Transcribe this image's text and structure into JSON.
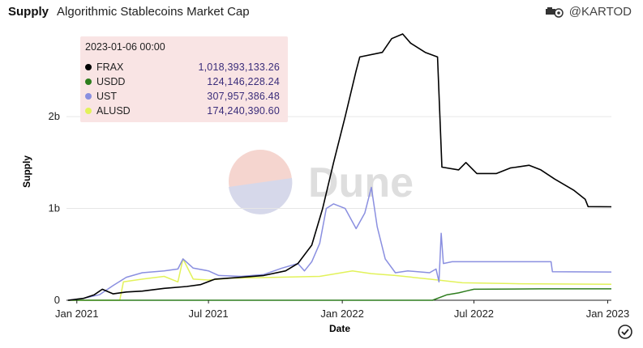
{
  "header": {
    "title": "Supply",
    "subtitle": "Algorithmic Stablecoins Market Cap",
    "author": "@KARTOD"
  },
  "watermark": {
    "text": "Dune"
  },
  "tooltip": {
    "date": "2023-01-06 00:00",
    "rows": [
      {
        "name": "FRAX",
        "value": "1,018,393,133.26",
        "color": "#000000"
      },
      {
        "name": "USDD",
        "value": "124,146,228.24",
        "color": "#2e7d1e"
      },
      {
        "name": "UST",
        "value": "307,957,386.48",
        "color": "#8a8fe0"
      },
      {
        "name": "ALUSD",
        "value": "174,240,390.60",
        "color": "#e2f25a"
      }
    ]
  },
  "chart_data": {
    "type": "line",
    "xlabel": "Date",
    "ylabel": "Supply",
    "x_ticks": [
      "Jan 2021",
      "Jul 2021",
      "Jan 2022",
      "Jul 2022",
      "Jan 2023"
    ],
    "y_ticks": [
      "0",
      "1b",
      "2b"
    ],
    "ylim": [
      0,
      2900000000
    ],
    "grid": true,
    "series": [
      {
        "name": "FRAX",
        "color": "#000000",
        "points": [
          [
            "2020-12-20",
            0
          ],
          [
            "2021-01-10",
            20000000
          ],
          [
            "2021-01-25",
            60000000
          ],
          [
            "2021-02-05",
            120000000
          ],
          [
            "2021-02-20",
            70000000
          ],
          [
            "2021-03-10",
            90000000
          ],
          [
            "2021-04-01",
            100000000
          ],
          [
            "2021-05-01",
            130000000
          ],
          [
            "2021-06-01",
            150000000
          ],
          [
            "2021-06-20",
            170000000
          ],
          [
            "2021-07-10",
            230000000
          ],
          [
            "2021-08-15",
            250000000
          ],
          [
            "2021-09-15",
            270000000
          ],
          [
            "2021-10-15",
            320000000
          ],
          [
            "2021-11-01",
            400000000
          ],
          [
            "2021-11-20",
            600000000
          ],
          [
            "2021-12-05",
            1000000000
          ],
          [
            "2021-12-20",
            1500000000
          ],
          [
            "2022-01-05",
            2000000000
          ],
          [
            "2022-01-20",
            2500000000
          ],
          [
            "2022-01-25",
            2650000000
          ],
          [
            "2022-02-25",
            2700000000
          ],
          [
            "2022-03-10",
            2850000000
          ],
          [
            "2022-03-25",
            2900000000
          ],
          [
            "2022-04-05",
            2800000000
          ],
          [
            "2022-04-25",
            2700000000
          ],
          [
            "2022-05-12",
            2650000000
          ],
          [
            "2022-05-18",
            1450000000
          ],
          [
            "2022-06-10",
            1420000000
          ],
          [
            "2022-06-20",
            1500000000
          ],
          [
            "2022-07-05",
            1380000000
          ],
          [
            "2022-08-01",
            1380000000
          ],
          [
            "2022-08-20",
            1440000000
          ],
          [
            "2022-09-15",
            1470000000
          ],
          [
            "2022-10-01",
            1420000000
          ],
          [
            "2022-10-20",
            1320000000
          ],
          [
            "2022-11-15",
            1200000000
          ],
          [
            "2022-12-01",
            1100000000
          ],
          [
            "2022-12-05",
            1020000000
          ],
          [
            "2023-01-06",
            1018393133
          ]
        ]
      },
      {
        "name": "USDD",
        "color": "#2e7d1e",
        "points": [
          [
            "2020-12-20",
            0
          ],
          [
            "2022-05-05",
            0
          ],
          [
            "2022-05-25",
            60000000
          ],
          [
            "2022-06-10",
            80000000
          ],
          [
            "2022-06-20",
            100000000
          ],
          [
            "2022-07-01",
            120000000
          ],
          [
            "2022-10-01",
            124000000
          ],
          [
            "2023-01-06",
            124146228
          ]
        ]
      },
      {
        "name": "UST",
        "color": "#8a8fe0",
        "points": [
          [
            "2020-12-20",
            0
          ],
          [
            "2021-01-10",
            20000000
          ],
          [
            "2021-02-01",
            60000000
          ],
          [
            "2021-02-20",
            160000000
          ],
          [
            "2021-03-10",
            250000000
          ],
          [
            "2021-04-01",
            300000000
          ],
          [
            "2021-05-01",
            320000000
          ],
          [
            "2021-05-20",
            340000000
          ],
          [
            "2021-05-27",
            450000000
          ],
          [
            "2021-06-10",
            350000000
          ],
          [
            "2021-07-01",
            320000000
          ],
          [
            "2021-07-15",
            270000000
          ],
          [
            "2021-08-15",
            260000000
          ],
          [
            "2021-09-15",
            280000000
          ],
          [
            "2021-10-10",
            350000000
          ],
          [
            "2021-11-01",
            400000000
          ],
          [
            "2021-11-10",
            320000000
          ],
          [
            "2021-11-20",
            420000000
          ],
          [
            "2021-12-01",
            620000000
          ],
          [
            "2021-12-10",
            1000000000
          ],
          [
            "2021-12-20",
            1050000000
          ],
          [
            "2022-01-05",
            1000000000
          ],
          [
            "2022-01-20",
            780000000
          ],
          [
            "2022-02-01",
            950000000
          ],
          [
            "2022-02-10",
            1230000000
          ],
          [
            "2022-02-18",
            800000000
          ],
          [
            "2022-03-01",
            450000000
          ],
          [
            "2022-03-15",
            300000000
          ],
          [
            "2022-04-01",
            320000000
          ],
          [
            "2022-05-01",
            300000000
          ],
          [
            "2022-05-10",
            340000000
          ],
          [
            "2022-05-14",
            200000000
          ],
          [
            "2022-05-17",
            730000000
          ],
          [
            "2022-05-20",
            400000000
          ],
          [
            "2022-06-01",
            420000000
          ],
          [
            "2022-10-15",
            420000000
          ],
          [
            "2022-10-17",
            310000000
          ],
          [
            "2023-01-06",
            307957386
          ]
        ]
      },
      {
        "name": "ALUSD",
        "color": "#e2f25a",
        "points": [
          [
            "2020-12-20",
            0
          ],
          [
            "2021-03-01",
            0
          ],
          [
            "2021-03-06",
            200000000
          ],
          [
            "2021-04-01",
            230000000
          ],
          [
            "2021-05-01",
            260000000
          ],
          [
            "2021-05-20",
            200000000
          ],
          [
            "2021-05-27",
            450000000
          ],
          [
            "2021-06-10",
            230000000
          ],
          [
            "2021-07-01",
            220000000
          ],
          [
            "2021-08-01",
            240000000
          ],
          [
            "2021-10-01",
            250000000
          ],
          [
            "2021-12-01",
            260000000
          ],
          [
            "2022-01-15",
            320000000
          ],
          [
            "2022-02-10",
            290000000
          ],
          [
            "2022-03-15",
            270000000
          ],
          [
            "2022-05-01",
            230000000
          ],
          [
            "2022-06-15",
            190000000
          ],
          [
            "2022-09-01",
            180000000
          ],
          [
            "2023-01-06",
            174240391
          ]
        ]
      }
    ]
  }
}
